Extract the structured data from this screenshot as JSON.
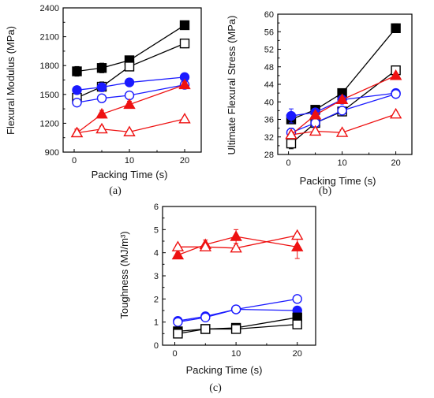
{
  "colors": {
    "black": "#000000",
    "blue": "#1a1aff",
    "red": "#ee1111"
  },
  "chart_data": [
    {
      "id": "a",
      "type": "line",
      "panel_label": "(a)",
      "xlabel": "Packing Time (s)",
      "ylabel": "Flexural Modulus (MPa)",
      "xlim": [
        -2,
        23
      ],
      "ylim": [
        900,
        2400
      ],
      "xticks": [
        "0",
        "10",
        "20"
      ],
      "xtick_values": [
        0,
        10,
        20
      ],
      "yticks": [
        "900",
        "1200",
        "1500",
        "1800",
        "2100",
        "2400"
      ],
      "ytick_values": [
        900,
        1200,
        1500,
        1800,
        2100,
        2400
      ],
      "series": [
        {
          "color": "black",
          "marker": "square",
          "filled": true,
          "x": [
            0.5,
            5,
            10,
            20
          ],
          "y": [
            1740,
            1775,
            1855,
            2220
          ],
          "err": [
            50,
            50,
            45,
            40
          ]
        },
        {
          "color": "black",
          "marker": "square",
          "filled": false,
          "x": [
            0.5,
            5,
            10,
            20
          ],
          "y": [
            1465,
            1580,
            1790,
            2030
          ],
          "err": [
            40,
            50,
            45,
            45
          ]
        },
        {
          "color": "blue",
          "marker": "circle",
          "filled": true,
          "x": [
            0.5,
            5,
            10,
            20
          ],
          "y": [
            1545,
            1575,
            1625,
            1680
          ],
          "err": [
            25,
            25,
            20,
            20
          ]
        },
        {
          "color": "blue",
          "marker": "circle",
          "filled": false,
          "x": [
            0.5,
            5,
            10,
            20
          ],
          "y": [
            1415,
            1460,
            1490,
            1600
          ],
          "err": [
            30,
            30,
            25,
            25
          ]
        },
        {
          "color": "red",
          "marker": "triangle",
          "filled": true,
          "x": [
            0.5,
            5,
            10,
            20
          ],
          "y": [
            1100,
            1295,
            1395,
            1600
          ],
          "err": [
            30,
            40,
            35,
            30
          ]
        },
        {
          "color": "red",
          "marker": "triangle",
          "filled": false,
          "x": [
            0.5,
            5,
            10,
            20
          ],
          "y": [
            1100,
            1140,
            1110,
            1245
          ],
          "err": [
            40,
            30,
            20,
            20
          ]
        }
      ]
    },
    {
      "id": "b",
      "type": "line",
      "panel_label": "(b)",
      "xlabel": "Packing Time (s)",
      "ylabel": "Ultimate Flexural Stress (MPa)",
      "xlim": [
        -2,
        23
      ],
      "ylim": [
        28,
        60
      ],
      "xticks": [
        "0",
        "10",
        "20"
      ],
      "xtick_values": [
        0,
        10,
        20
      ],
      "yticks": [
        "28",
        "32",
        "36",
        "40",
        "44",
        "48",
        "52",
        "56",
        "60"
      ],
      "ytick_values": [
        28,
        32,
        36,
        40,
        44,
        48,
        52,
        56,
        60
      ],
      "series": [
        {
          "color": "black",
          "marker": "square",
          "filled": true,
          "x": [
            0.5,
            5,
            10,
            20
          ],
          "y": [
            36.0,
            38.2,
            42.0,
            56.8
          ],
          "err": [
            0.8,
            0.8,
            0.6,
            1.0
          ]
        },
        {
          "color": "black",
          "marker": "square",
          "filled": false,
          "x": [
            0.5,
            5,
            10,
            20
          ],
          "y": [
            30.5,
            35.2,
            37.8,
            47.2
          ],
          "err": [
            1.2,
            0.8,
            0.8,
            1.0
          ]
        },
        {
          "color": "blue",
          "marker": "circle",
          "filled": true,
          "x": [
            0.5,
            5,
            10,
            20
          ],
          "y": [
            36.8,
            37.6,
            40.5,
            42.0
          ],
          "err": [
            1.6,
            0.8,
            0.6,
            0.5
          ]
        },
        {
          "color": "blue",
          "marker": "circle",
          "filled": false,
          "x": [
            0.5,
            5,
            10,
            20
          ],
          "y": [
            33.0,
            35.2,
            38.0,
            41.8
          ],
          "err": [
            1.0,
            0.8,
            0.8,
            0.6
          ]
        },
        {
          "color": "red",
          "marker": "triangle",
          "filled": true,
          "x": [
            0.5,
            5,
            10,
            20
          ],
          "y": [
            32.5,
            37.0,
            40.5,
            46.0
          ],
          "err": [
            0.6,
            0.6,
            0.6,
            0.5
          ]
        },
        {
          "color": "red",
          "marker": "triangle",
          "filled": false,
          "x": [
            0.5,
            5,
            10,
            20
          ],
          "y": [
            32.5,
            33.3,
            33.0,
            37.2
          ],
          "err": [
            0.6,
            0.6,
            0.6,
            0.5
          ]
        }
      ]
    },
    {
      "id": "c",
      "type": "line",
      "panel_label": "(c)",
      "xlabel": "Packing Time (s)",
      "ylabel": "Toughness (MJ/m³)",
      "xlim": [
        -2,
        23
      ],
      "ylim": [
        0,
        6
      ],
      "xticks": [
        "0",
        "10",
        "20"
      ],
      "xtick_values": [
        0,
        10,
        20
      ],
      "yticks": [
        "0",
        "1",
        "2",
        "3",
        "4",
        "5",
        "6"
      ],
      "ytick_values": [
        0,
        1,
        2,
        3,
        4,
        5,
        6
      ],
      "series": [
        {
          "color": "red",
          "marker": "triangle",
          "filled": true,
          "x": [
            0.5,
            5,
            10,
            20
          ],
          "y": [
            3.9,
            4.35,
            4.7,
            4.25
          ],
          "err": [
            0.1,
            0.2,
            0.3,
            0.5
          ]
        },
        {
          "color": "red",
          "marker": "triangle",
          "filled": false,
          "x": [
            0.5,
            5,
            10,
            20
          ],
          "y": [
            4.25,
            4.25,
            4.2,
            4.75
          ],
          "err": [
            0.1,
            0.1,
            0.1,
            0.1
          ]
        },
        {
          "color": "blue",
          "marker": "circle",
          "filled": true,
          "x": [
            0.5,
            5,
            10,
            20
          ],
          "y": [
            1.05,
            1.25,
            1.55,
            1.5
          ],
          "err": [
            0.1,
            0.1,
            0.1,
            0.1
          ]
        },
        {
          "color": "blue",
          "marker": "circle",
          "filled": false,
          "x": [
            0.5,
            5,
            10,
            20
          ],
          "y": [
            1.0,
            1.2,
            1.55,
            2.0
          ],
          "err": [
            0.1,
            0.1,
            0.1,
            0.1
          ]
        },
        {
          "color": "black",
          "marker": "square",
          "filled": true,
          "x": [
            0.5,
            5,
            10,
            20
          ],
          "y": [
            0.6,
            0.7,
            0.75,
            1.2
          ],
          "err": [
            0.15,
            0.1,
            0.1,
            0.15
          ]
        },
        {
          "color": "black",
          "marker": "square",
          "filled": false,
          "x": [
            0.5,
            5,
            10,
            20
          ],
          "y": [
            0.5,
            0.7,
            0.7,
            0.9
          ],
          "err": [
            0.1,
            0.1,
            0.1,
            0.1
          ]
        }
      ]
    }
  ]
}
